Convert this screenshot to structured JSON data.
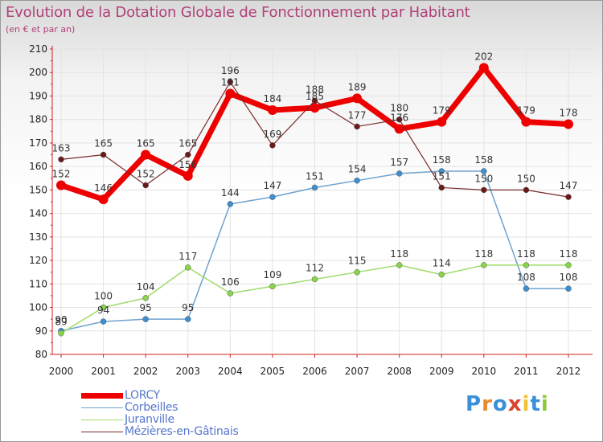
{
  "title": "Evolution de la Dotation Globale de Fonctionnement par Habitant",
  "subtitle": "(en € et par an)",
  "logo": {
    "letters": [
      "P",
      "r",
      "o",
      "x",
      "i",
      "t",
      "i"
    ],
    "colors": [
      "#3a8fd9",
      "#e8892a",
      "#3a8fd9",
      "#d9442a",
      "#f1c232",
      "#3a8fd9",
      "#8fc93a"
    ]
  },
  "chart_data": {
    "type": "line",
    "categories": [
      "2000",
      "2001",
      "2002",
      "2003",
      "2004",
      "2005",
      "2006",
      "2007",
      "2008",
      "2009",
      "2010",
      "2011",
      "2012"
    ],
    "ylim": [
      80,
      210
    ],
    "yticks": [
      "80",
      "90",
      "100",
      "110",
      "120",
      "130",
      "140",
      "150",
      "160",
      "170",
      "180",
      "190",
      "200",
      "210"
    ],
    "grid": true,
    "legend_position": "bottom-left",
    "series": [
      {
        "name": "LORCY",
        "color": "#ee0000",
        "width": 7,
        "marker_color": "#ee0000",
        "marker_size": 6,
        "values": [
          152,
          146,
          165,
          156,
          191,
          184,
          185,
          189,
          176,
          179,
          202,
          179,
          178
        ],
        "labels": [
          "152",
          "146",
          "165",
          "156",
          "191",
          "184",
          "185",
          "189",
          "176",
          "179",
          "202",
          "179",
          "178"
        ]
      },
      {
        "name": "Corbeilles",
        "color": "#6ea1cf",
        "width": 1.5,
        "marker_color": "#3d8fd0",
        "marker_size": 3.5,
        "values": [
          90,
          94,
          95,
          95,
          144,
          147,
          151,
          154,
          157,
          158,
          158,
          108,
          108
        ],
        "labels": [
          "90",
          "94",
          "95",
          "95",
          "144",
          "147",
          "151",
          "154",
          "157",
          "158",
          "158",
          "108",
          "108"
        ]
      },
      {
        "name": "Juranville",
        "color": "#9fdc6a",
        "width": 1.5,
        "marker_color": "#88d44a",
        "marker_size": 3.5,
        "values": [
          89,
          100,
          104,
          117,
          106,
          109,
          112,
          115,
          118,
          114,
          118,
          118,
          118
        ],
        "labels": [
          "89",
          "100",
          "104",
          "117",
          "106",
          "109",
          "112",
          "115",
          "118",
          "114",
          "118",
          "118",
          "118"
        ]
      },
      {
        "name": "Mézières-en-Gâtinais",
        "color": "#7a2a2a",
        "width": 1.2,
        "marker_color": "#6b1a1a",
        "marker_size": 3.5,
        "values": [
          163,
          165,
          152,
          165,
          196,
          169,
          188,
          177,
          180,
          151,
          150,
          150,
          147
        ],
        "labels": [
          "163",
          "165",
          "152",
          "165",
          "196",
          "169",
          "188",
          "177",
          "180",
          "151",
          "150",
          "150",
          "147"
        ]
      }
    ]
  }
}
